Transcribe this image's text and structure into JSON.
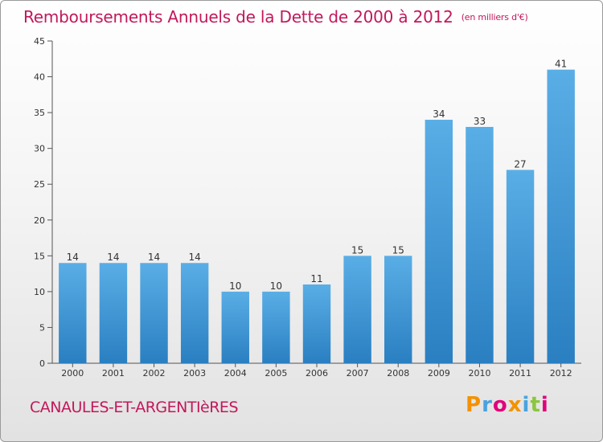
{
  "title": "Remboursements Annuels de la Dette de 2000 à 2012",
  "subtitle": "(en milliers d'€)",
  "commune": "CANAULES-ET-ARGENTIèRES",
  "logo": {
    "text": "Proxiti",
    "letters": [
      "P",
      "r",
      "o",
      "x",
      "i",
      "t",
      "i"
    ],
    "colors": [
      "#f39200",
      "#4aa3df",
      "#e2007a",
      "#f39200",
      "#4aa3df",
      "#8cc63f",
      "#e2007a"
    ]
  },
  "colors": {
    "bar_light": "#5aaee6",
    "bar_dark": "#2a7fc1",
    "accent": "#c2185b"
  },
  "chart_data": {
    "type": "bar",
    "title": "Remboursements Annuels de la Dette de 2000 à 2012",
    "subtitle": "(en milliers d'€)",
    "categories": [
      "2000",
      "2001",
      "2002",
      "2003",
      "2004",
      "2005",
      "2006",
      "2007",
      "2008",
      "2009",
      "2010",
      "2011",
      "2012"
    ],
    "values": [
      14,
      14,
      14,
      14,
      10,
      10,
      11,
      15,
      15,
      34,
      33,
      27,
      41
    ],
    "ylim": [
      0,
      45
    ],
    "yticks": [
      0,
      5,
      10,
      15,
      20,
      25,
      30,
      35,
      40,
      45
    ],
    "grid": false,
    "data_labels": true
  }
}
